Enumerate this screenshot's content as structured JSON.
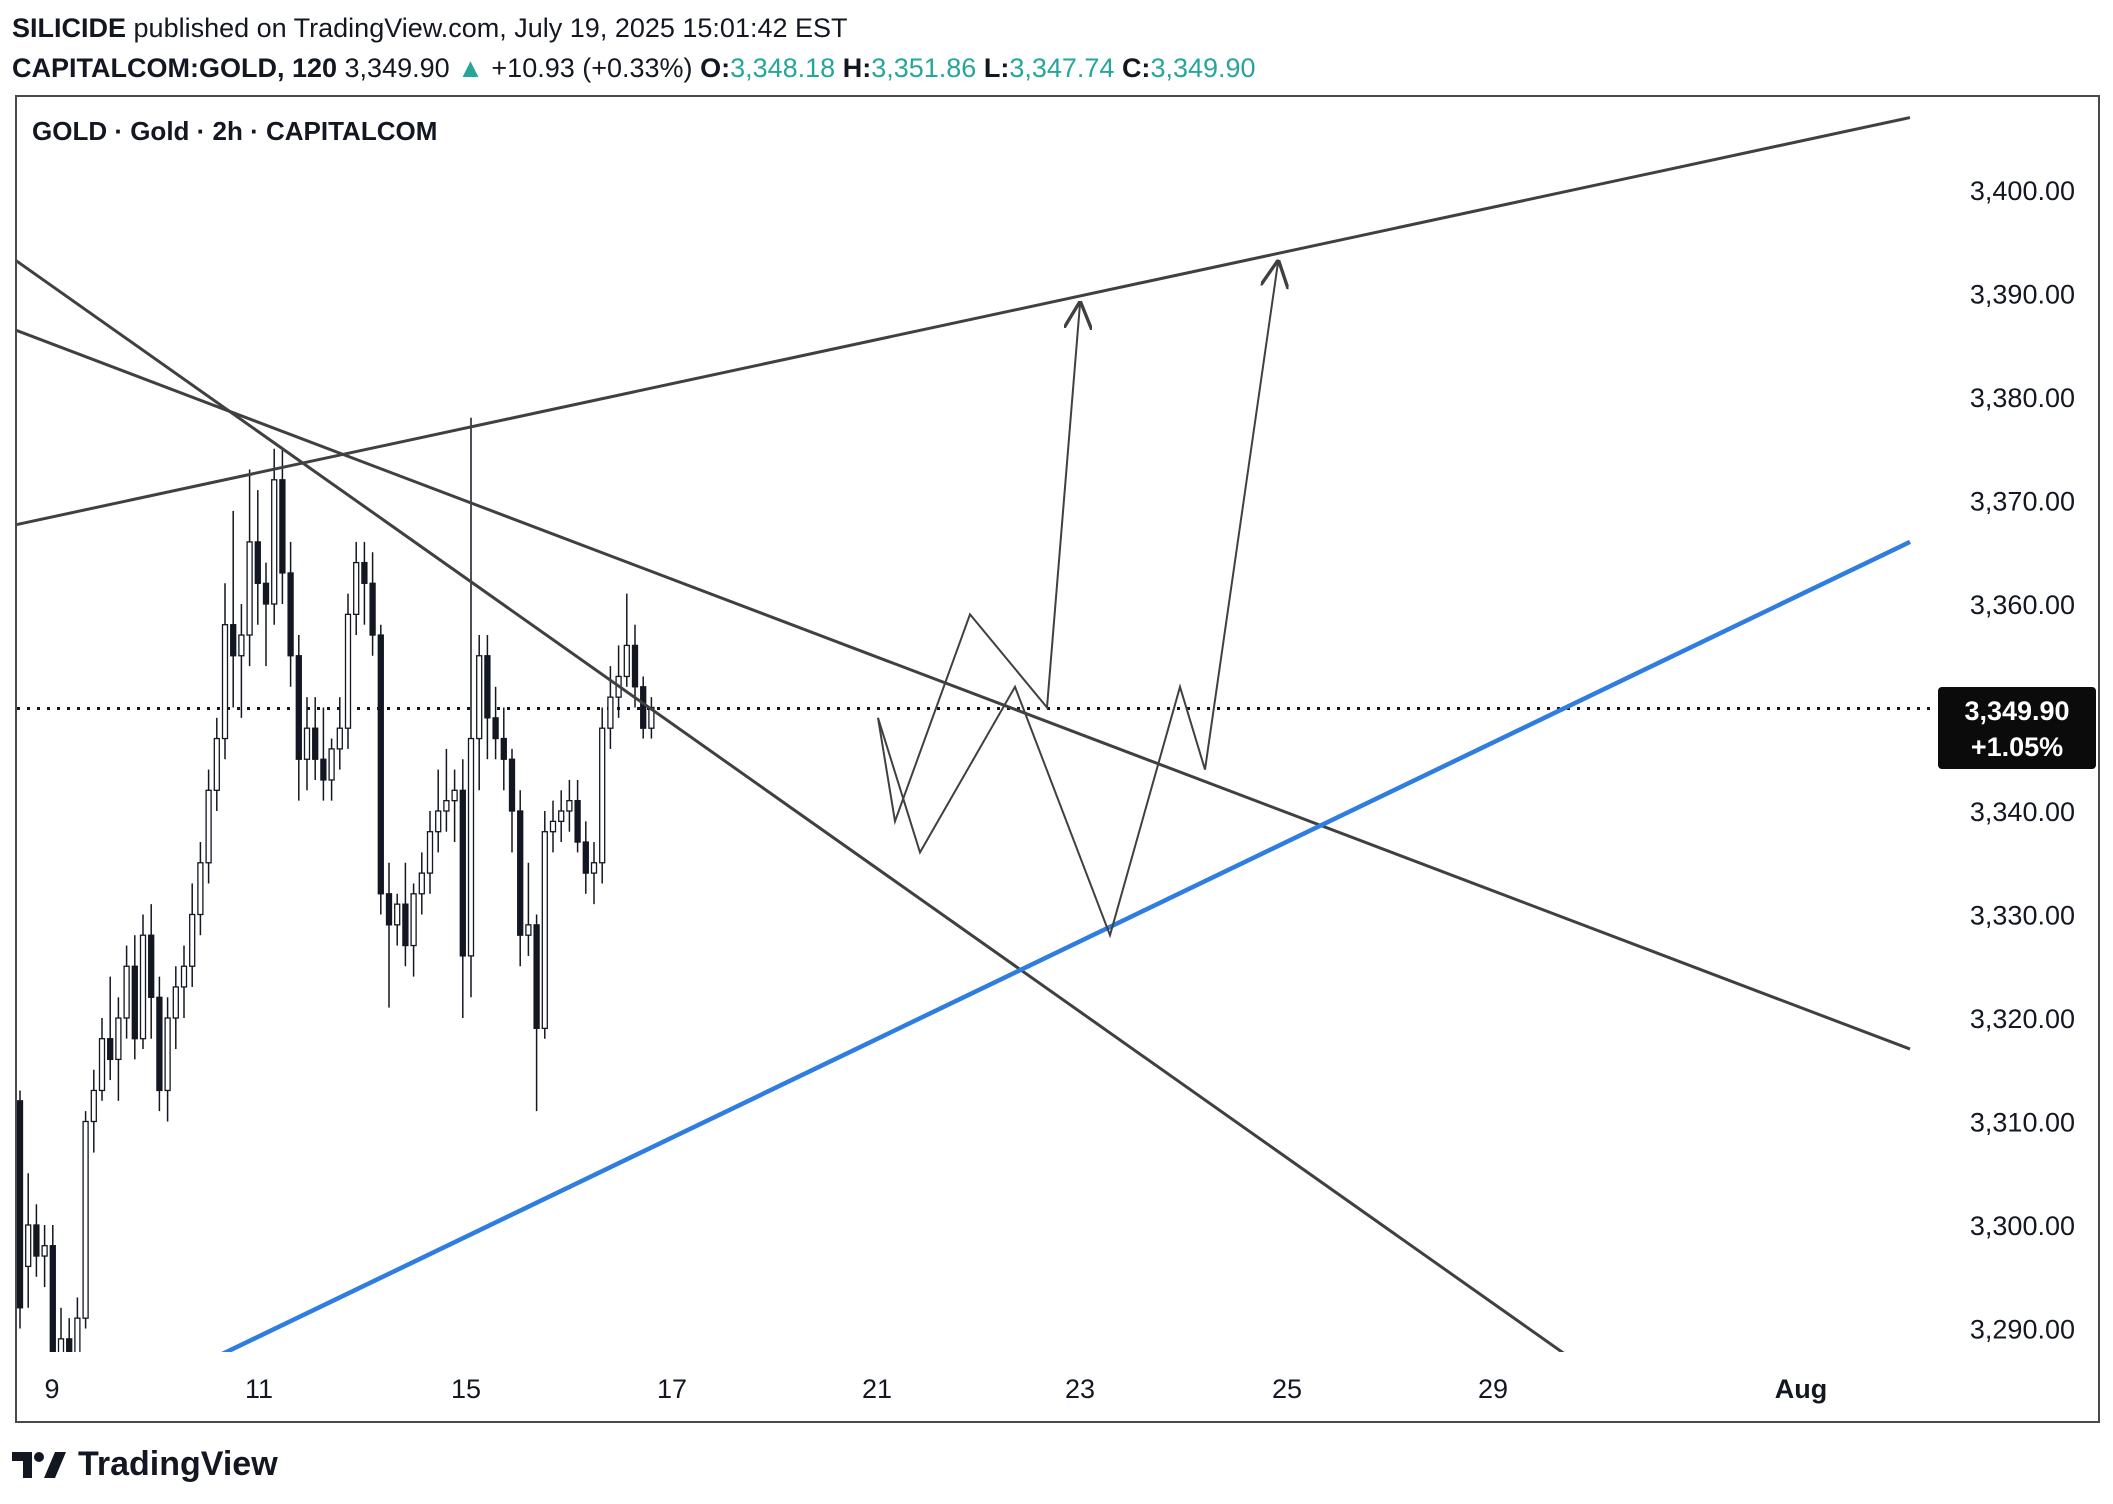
{
  "header": {
    "author": "SILICIDE",
    "published": "published on TradingView.com, July 19, 2025 15:01:42 EST",
    "symbol": "CAPITALCOM:GOLD, 120",
    "last": "3,349.90",
    "change": "+10.93 (+0.33%)",
    "o_label": "O:",
    "o": "3,348.18",
    "h_label": "H:",
    "h": "3,351.86",
    "l_label": "L:",
    "l": "3,347.74",
    "c_label": "C:",
    "c": "3,349.90"
  },
  "legend": {
    "title": "GOLD · Gold · 2h · CAPITALCOM"
  },
  "price_tag": {
    "price": "3,349.90",
    "change": "+1.05%"
  },
  "footer": {
    "brand": "TradingView"
  },
  "colors": {
    "up": "#26a69a",
    "line": "#404040",
    "support": "#2f7de1",
    "text": "#131722"
  },
  "chart_data": {
    "type": "candlestick",
    "y_ticks": [
      "3,400.00",
      "3,390.00",
      "3,380.00",
      "3,370.00",
      "3,360.00",
      "3,350.00",
      "3,340.00",
      "3,330.00",
      "3,320.00",
      "3,310.00",
      "3,300.00",
      "3,290.00"
    ],
    "y_tick_values": [
      3400,
      3390,
      3380,
      3370,
      3360,
      3350,
      3340,
      3330,
      3320,
      3310,
      3300,
      3290
    ],
    "x_ticks": [
      "9",
      "11",
      "15",
      "17",
      "21",
      "23",
      "25",
      "29",
      "Aug"
    ],
    "current_price": 3349.9,
    "ohlc": [
      [
        3312,
        3313,
        3290,
        3292
      ],
      [
        3296,
        3305,
        3292,
        3300
      ],
      [
        3300,
        3302,
        3295,
        3297
      ],
      [
        3297,
        3300,
        3294,
        3298
      ],
      [
        3298,
        3300,
        3284,
        3286
      ],
      [
        3286,
        3292,
        3283,
        3289
      ],
      [
        3289,
        3291,
        3283,
        3287
      ],
      [
        3287,
        3293,
        3285,
        3291
      ],
      [
        3291,
        3311,
        3290,
        3310
      ],
      [
        3310,
        3315,
        3307,
        3313
      ],
      [
        3313,
        3320,
        3312,
        3318
      ],
      [
        3318,
        3324,
        3314,
        3316
      ],
      [
        3316,
        3322,
        3312,
        3320
      ],
      [
        3320,
        3327,
        3318,
        3325
      ],
      [
        3325,
        3328,
        3316,
        3318
      ],
      [
        3318,
        3330,
        3317,
        3328
      ],
      [
        3328,
        3331,
        3318,
        3322
      ],
      [
        3322,
        3324,
        3311,
        3313
      ],
      [
        3313,
        3322,
        3310,
        3320
      ],
      [
        3320,
        3325,
        3317,
        3323
      ],
      [
        3323,
        3327,
        3320,
        3325
      ],
      [
        3325,
        3333,
        3323,
        3330
      ],
      [
        3330,
        3337,
        3328,
        3335
      ],
      [
        3335,
        3344,
        3333,
        3342
      ],
      [
        3342,
        3349,
        3340,
        3347
      ],
      [
        3347,
        3362,
        3345,
        3358
      ],
      [
        3358,
        3369,
        3350,
        3355
      ],
      [
        3355,
        3360,
        3349,
        3357
      ],
      [
        3357,
        3373,
        3354,
        3366
      ],
      [
        3366,
        3371,
        3358,
        3362
      ],
      [
        3362,
        3364,
        3354,
        3360
      ],
      [
        3360,
        3375,
        3358,
        3372
      ],
      [
        3372,
        3375,
        3360,
        3363
      ],
      [
        3363,
        3366,
        3352,
        3355
      ],
      [
        3355,
        3357,
        3341,
        3345
      ],
      [
        3345,
        3351,
        3342,
        3348
      ],
      [
        3348,
        3351,
        3343,
        3345
      ],
      [
        3345,
        3350,
        3341,
        3343
      ],
      [
        3343,
        3347,
        3341,
        3346
      ],
      [
        3346,
        3351,
        3344,
        3348
      ],
      [
        3348,
        3361,
        3346,
        3359
      ],
      [
        3359,
        3366,
        3357,
        3364
      ],
      [
        3364,
        3366,
        3358,
        3362
      ],
      [
        3362,
        3365,
        3355,
        3357
      ],
      [
        3357,
        3358,
        3330,
        3332
      ],
      [
        3332,
        3335,
        3321,
        3329
      ],
      [
        3329,
        3332,
        3327,
        3331
      ],
      [
        3331,
        3335,
        3325,
        3327
      ],
      [
        3327,
        3333,
        3324,
        3332
      ],
      [
        3332,
        3336,
        3330,
        3334
      ],
      [
        3334,
        3340,
        3332,
        3338
      ],
      [
        3338,
        3344,
        3336,
        3340
      ],
      [
        3340,
        3346,
        3338,
        3341
      ],
      [
        3341,
        3344,
        3337,
        3342
      ],
      [
        3342,
        3345,
        3320,
        3326
      ],
      [
        3326,
        3378,
        3322,
        3347
      ],
      [
        3347,
        3357,
        3342,
        3355
      ],
      [
        3355,
        3357,
        3345,
        3349
      ],
      [
        3349,
        3352,
        3345,
        3347
      ],
      [
        3347,
        3350,
        3342,
        3345
      ],
      [
        3345,
        3346,
        3336,
        3340
      ],
      [
        3340,
        3342,
        3325,
        3328
      ],
      [
        3328,
        3335,
        3326,
        3329
      ],
      [
        3329,
        3330,
        3311,
        3319
      ],
      [
        3319,
        3340,
        3318,
        3338
      ],
      [
        3338,
        3341,
        3336,
        3339
      ],
      [
        3339,
        3342,
        3337,
        3340
      ],
      [
        3340,
        3343,
        3338,
        3341
      ],
      [
        3341,
        3343,
        3336,
        3337
      ],
      [
        3337,
        3339,
        3332,
        3334
      ],
      [
        3334,
        3337,
        3331,
        3335
      ],
      [
        3335,
        3350,
        3333,
        3348
      ],
      [
        3348,
        3354,
        3346,
        3351
      ],
      [
        3351,
        3356,
        3349,
        3353
      ],
      [
        3353,
        3361,
        3352,
        3356
      ],
      [
        3356,
        3358,
        3350,
        3352
      ],
      [
        3352,
        3353,
        3347,
        3348
      ],
      [
        3348,
        3351,
        3347,
        3350
      ]
    ],
    "trendlines": [
      {
        "name": "upper-resistance",
        "points": [
          [
            -40,
            3366.5
          ],
          [
            1910,
            3407
          ]
        ]
      },
      {
        "name": "steep-downtrend",
        "points": [
          [
            -40,
            3397
          ],
          [
            1580,
            3286.5
          ]
        ]
      },
      {
        "name": "descending-resistance",
        "points": [
          [
            -40,
            3388.5
          ],
          [
            1910,
            3317
          ]
        ]
      },
      {
        "name": "ascending-support",
        "points": [
          [
            200,
            3286.5
          ],
          [
            1910,
            3366
          ]
        ]
      }
    ],
    "projection_path_a": [
      [
        878,
        3349
      ],
      [
        895,
        3339
      ],
      [
        970,
        3359
      ],
      [
        1047,
        3350
      ],
      [
        1080,
        3389
      ]
    ],
    "projection_path_b": [
      [
        878,
        3349
      ],
      [
        920,
        3336
      ],
      [
        1015,
        3352
      ],
      [
        1110,
        3328
      ],
      [
        1180,
        3352
      ],
      [
        1205,
        3344
      ],
      [
        1278,
        3393
      ]
    ]
  }
}
